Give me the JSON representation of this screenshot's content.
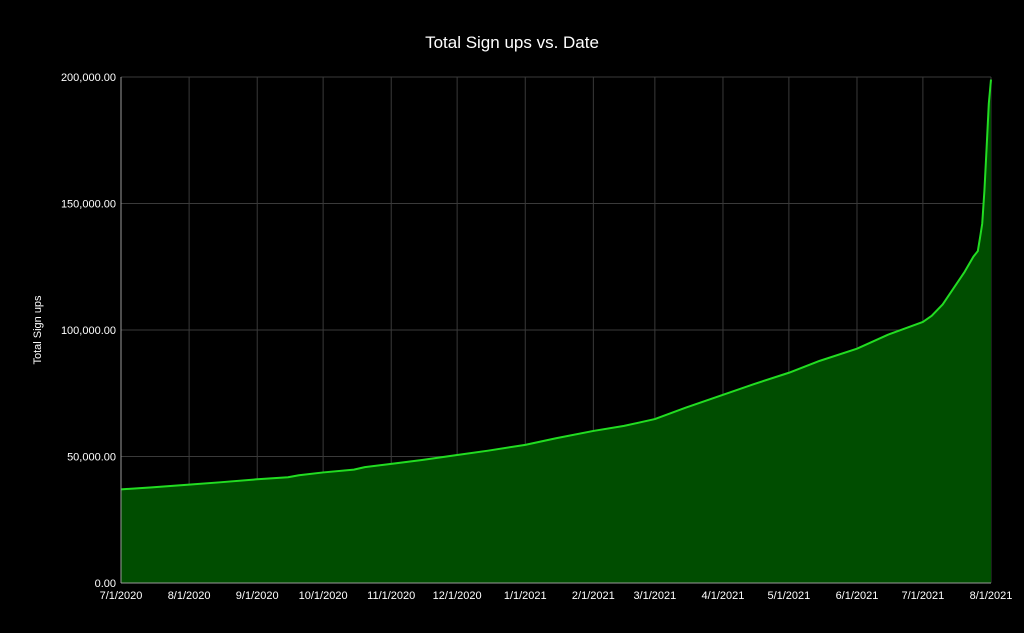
{
  "chart_data": {
    "type": "area",
    "title": "Total Sign ups vs. Date",
    "xlabel": "",
    "ylabel": "Total Sign ups",
    "x_ticks": [
      "7/1/2020",
      "8/1/2020",
      "9/1/2020",
      "10/1/2020",
      "11/1/2020",
      "12/1/2020",
      "1/1/2021",
      "2/1/2021",
      "3/1/2021",
      "4/1/2021",
      "5/1/2021",
      "6/1/2021",
      "7/1/2021",
      "8/1/2021"
    ],
    "y_ticks": [
      "0.00",
      "50,000.00",
      "100,000.00",
      "150,000.00",
      "200,000.00"
    ],
    "xlim": [
      "2020-07-01",
      "2021-08-01"
    ],
    "ylim": [
      0,
      200000
    ],
    "grid": true,
    "legend": "none",
    "line_color": "#22dd22",
    "fill_color": "#004d00",
    "background": "#000000",
    "series": [
      {
        "x": [
          "2020-07-01",
          "2020-07-15",
          "2020-08-01",
          "2020-08-15",
          "2020-09-01",
          "2020-09-15",
          "2020-09-20",
          "2020-10-01",
          "2020-10-15",
          "2020-10-20",
          "2020-11-01",
          "2020-11-15",
          "2020-12-01",
          "2020-12-15",
          "2021-01-01",
          "2021-01-15",
          "2021-02-01",
          "2021-02-15",
          "2021-03-01",
          "2021-03-15",
          "2021-04-01",
          "2021-04-15",
          "2021-05-01",
          "2021-05-15",
          "2021-06-01",
          "2021-06-15",
          "2021-07-01",
          "2021-07-05",
          "2021-07-10",
          "2021-07-20",
          "2021-07-24",
          "2021-07-26",
          "2021-07-27",
          "2021-07-28",
          "2021-07-29",
          "2021-07-30",
          "2021-07-31",
          "2021-08-01"
        ],
        "values": [
          37000,
          37800,
          38900,
          39800,
          41000,
          41800,
          42600,
          43700,
          44800,
          45800,
          47100,
          48600,
          50600,
          52300,
          54600,
          57200,
          60100,
          62100,
          64800,
          69300,
          74400,
          78600,
          83100,
          87800,
          92600,
          98100,
          103200,
          105600,
          110100,
          123000,
          129000,
          131200,
          136500,
          142000,
          155000,
          172000,
          189500,
          199000
        ]
      }
    ]
  }
}
